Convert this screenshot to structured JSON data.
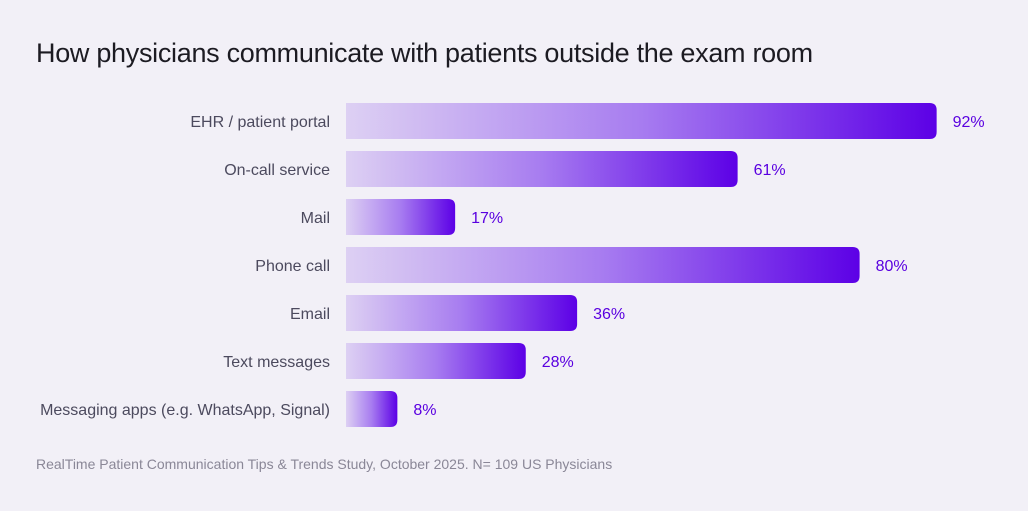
{
  "chart_data": {
    "type": "bar",
    "orientation": "horizontal",
    "title": "How physicians communicate with patients outside the exam room",
    "categories": [
      "EHR / patient portal",
      "On-call service",
      "Mail",
      "Phone call",
      "Email",
      "Text messages",
      "Messaging apps (e.g. WhatsApp, Signal)"
    ],
    "values": [
      92,
      61,
      17,
      80,
      36,
      28,
      8
    ],
    "value_labels": [
      "92%",
      "61%",
      "17%",
      "80%",
      "36%",
      "28%",
      "8%"
    ],
    "xlim": [
      0,
      100
    ],
    "grid": false,
    "colors": {
      "gradient_start": "#ddd0f3",
      "gradient_end": "#5c00e6",
      "value_label": "#5a00e0"
    },
    "source": "RealTime Patient Communication Tips & Trends Study, October 2025. N= 109 US Physicians"
  }
}
